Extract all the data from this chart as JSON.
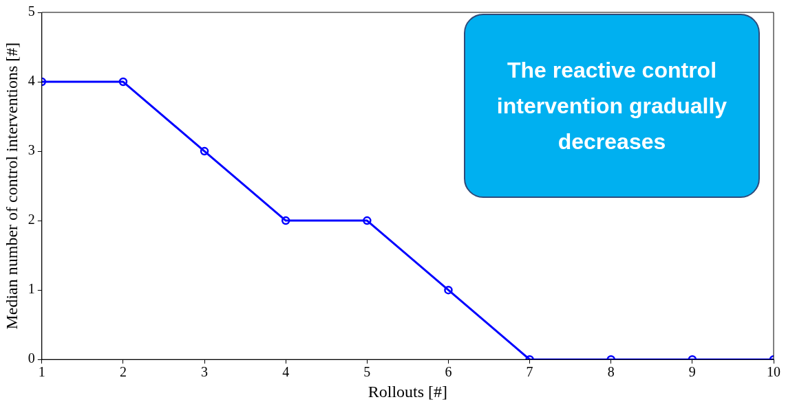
{
  "chart_data": {
    "type": "line",
    "xlabel": "Rollouts [#]",
    "ylabel": "Median number of control interventions [#]",
    "x": [
      1,
      2,
      3,
      4,
      5,
      6,
      7,
      8,
      9,
      10
    ],
    "series": [
      {
        "color": "#0000ff",
        "values": [
          4,
          4,
          3,
          2,
          2,
          1,
          0,
          0,
          0,
          0
        ]
      }
    ],
    "xlim": [
      1,
      10
    ],
    "xticks": [
      1,
      2,
      3,
      4,
      5,
      6,
      7,
      8,
      9,
      10
    ],
    "ylim": [
      0,
      5
    ],
    "yticks": [
      0,
      1,
      2,
      3,
      4,
      5
    ],
    "grid": false,
    "legend": false,
    "marker": "circle",
    "line_style": "solid",
    "annotations": [
      "The reactive control intervention gradually decreases"
    ]
  }
}
